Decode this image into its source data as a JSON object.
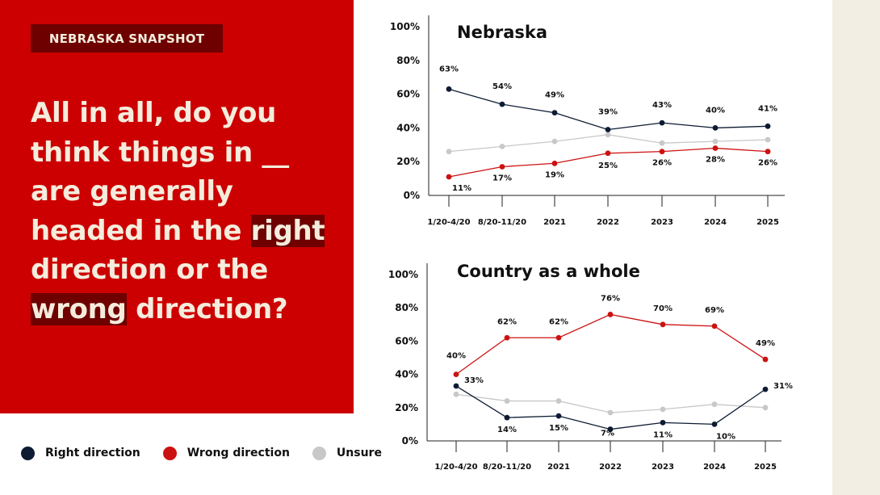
{
  "panel": {
    "badge": "NEBRASKA SNAPSHOT",
    "question": {
      "part1": "All in all, do you think things in __ are generally headed in the ",
      "highlight1": "right",
      "part2": " direction or the ",
      "highlight2": "wrong",
      "part3": " direction?"
    }
  },
  "legend": [
    {
      "label": "Right direction",
      "color": "#0d1b33"
    },
    {
      "label": "Wrong direction",
      "color": "#cc1111"
    },
    {
      "label": "Unsure",
      "color": "#c8c8c8"
    }
  ],
  "colors": {
    "right": "#0d1b33",
    "wrong": "#cc1111",
    "unsure": "#c8c8c8",
    "panel_red": "#cc0000",
    "badge": "#6e0000",
    "cream": "#f4ecdc"
  },
  "chart_data": [
    {
      "type": "line",
      "title": "Nebraska",
      "categories": [
        "1/20-4/20",
        "8/20-11/20",
        "2021",
        "2022",
        "2023",
        "2024",
        "2025"
      ],
      "yticks": [
        "0%",
        "20%",
        "40%",
        "60%",
        "80%",
        "100%"
      ],
      "ylim": [
        0,
        100
      ],
      "series": [
        {
          "key": "right",
          "values": [
            63,
            54,
            49,
            39,
            43,
            40,
            41
          ],
          "labels": [
            "63%",
            "54%",
            "49%",
            "39%",
            "43%",
            "40%",
            "41%"
          ]
        },
        {
          "key": "wrong",
          "values": [
            11,
            17,
            19,
            25,
            26,
            28,
            26
          ],
          "labels": [
            "11%",
            "17%",
            "19%",
            "25%",
            "26%",
            "28%",
            "26%"
          ]
        },
        {
          "key": "unsure",
          "values": [
            26,
            29,
            32,
            36,
            31,
            32,
            33
          ],
          "labels": []
        }
      ]
    },
    {
      "type": "line",
      "title": "Country as a whole",
      "categories": [
        "1/20-4/20",
        "8/20-11/20",
        "2021",
        "2022",
        "2023",
        "2024",
        "2025"
      ],
      "yticks": [
        "0%",
        "20%",
        "40%",
        "60%",
        "80%",
        "100%"
      ],
      "ylim": [
        0,
        100
      ],
      "series": [
        {
          "key": "right",
          "values": [
            33,
            14,
            15,
            7,
            11,
            10,
            31
          ],
          "labels": [
            "33%",
            "14%",
            "15%",
            "7%",
            "11%",
            "10%",
            "31%"
          ]
        },
        {
          "key": "wrong",
          "values": [
            40,
            62,
            62,
            76,
            70,
            69,
            49
          ],
          "labels": [
            "40%",
            "62%",
            "62%",
            "76%",
            "70%",
            "69%",
            "49%"
          ]
        },
        {
          "key": "unsure",
          "values": [
            28,
            24,
            24,
            17,
            19,
            22,
            20
          ],
          "labels": []
        }
      ]
    }
  ]
}
